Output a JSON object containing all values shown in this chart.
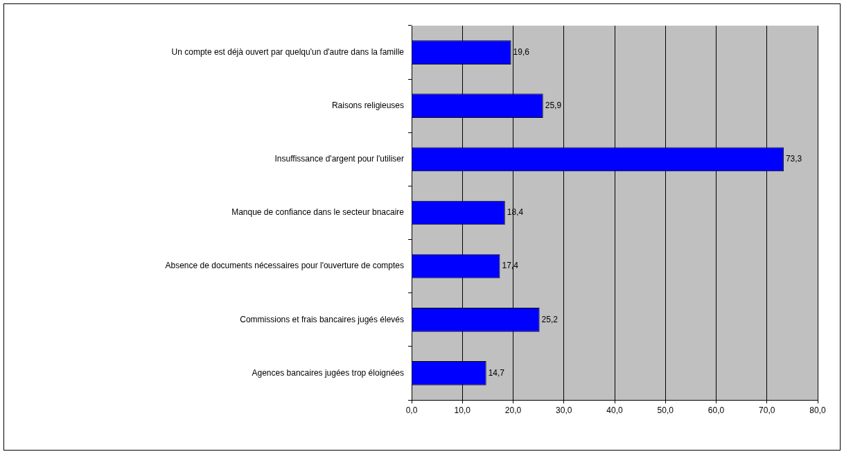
{
  "chart_data": {
    "type": "bar",
    "orientation": "horizontal",
    "categories": [
      "Un compte est déjà ouvert par quelqu'un d'autre dans la famille",
      "Raisons religieuses",
      "Insuffissance d'argent pour l'utiliser",
      "Manque de confiance dans le secteur bnacaire",
      "Absence de documents nécessaires pour l'ouverture de comptes",
      "Commissions et frais bancaires jugés élevés",
      "Agences bancaires jugées trop éloignées"
    ],
    "values": [
      19.6,
      25.9,
      73.3,
      18.4,
      17.4,
      25.2,
      14.7
    ],
    "value_labels": [
      "19,6",
      "25,9",
      "73,3",
      "18,4",
      "17,4",
      "25,2",
      "14,7"
    ],
    "color": "#0000ff",
    "xlim": [
      0,
      80
    ],
    "xticks": [
      {
        "value": 0,
        "label": "0,0"
      },
      {
        "value": 10,
        "label": "10,0"
      },
      {
        "value": 20,
        "label": "20,0"
      },
      {
        "value": 30,
        "label": "30,0"
      },
      {
        "value": 40,
        "label": "40,0"
      },
      {
        "value": 50,
        "label": "50,0"
      },
      {
        "value": 60,
        "label": "60,0"
      },
      {
        "value": 70,
        "label": "70,0"
      },
      {
        "value": 80,
        "label": "80,0"
      }
    ],
    "grid": "x",
    "legend": false
  }
}
